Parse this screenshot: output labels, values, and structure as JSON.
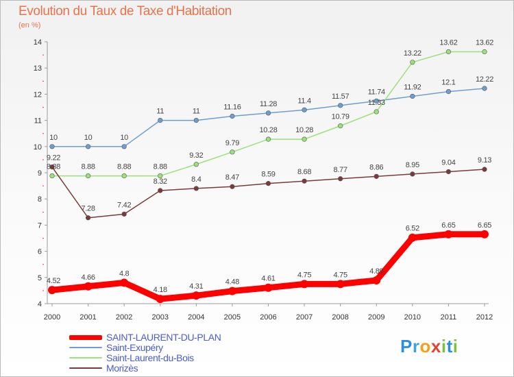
{
  "header": {
    "title": "Evolution du Taux de Taxe d'Habitation",
    "subtitle": "(en %)"
  },
  "brand": {
    "letters": [
      {
        "ch": "P",
        "color": "#2e8fd9"
      },
      {
        "ch": "r",
        "color": "#3aa6df"
      },
      {
        "ch": "o",
        "color": "#f5a01a"
      },
      {
        "ch": "x",
        "color": "#e2452f"
      },
      {
        "ch": "i",
        "color": "#7cc242"
      },
      {
        "ch": "t",
        "color": "#2e8fd9"
      },
      {
        "ch": "i",
        "color": "#7cc242"
      }
    ]
  },
  "chart_data": {
    "type": "line",
    "x": [
      "2000",
      "2001",
      "2002",
      "2003",
      "2004",
      "2005",
      "2006",
      "2007",
      "2008",
      "2009",
      "2010",
      "2011",
      "2012"
    ],
    "ylim": [
      4,
      14
    ],
    "yticks": [
      "4",
      "5",
      "6",
      "7",
      "8",
      "9",
      "10",
      "11",
      "12",
      "13",
      "14"
    ],
    "grid": false,
    "legend_position": "bottom-left",
    "series": [
      {
        "name": "SAINT-LAURENT-DU-PLAN",
        "color": "#ff0000",
        "values": [
          4.52,
          4.66,
          4.8,
          4.18,
          4.31,
          4.48,
          4.61,
          4.75,
          4.75,
          4.89,
          6.52,
          6.65,
          6.65
        ],
        "labels": [
          "4.52",
          "4.66",
          "4.8",
          "4.18",
          "4.31",
          "4.48",
          "4.61",
          "4.75",
          "4.75",
          "4.89",
          "6.52",
          "6.65",
          "6.65"
        ]
      },
      {
        "name": "Saint-Exupéry",
        "color": "#6c9fd0",
        "values": [
          10,
          10,
          10,
          11,
          11,
          11.16,
          11.28,
          11.4,
          11.57,
          11.74,
          11.92,
          12.1,
          12.22
        ],
        "labels": [
          "10",
          "10",
          "10",
          "11",
          "11",
          "11.16",
          "11.28",
          "11.4",
          "11.57",
          "11.74",
          "11.92",
          "12.1",
          "12.22"
        ]
      },
      {
        "name": "Saint-Laurent-du-Bois",
        "color": "#99e27a",
        "values": [
          8.88,
          8.88,
          8.88,
          8.88,
          9.32,
          9.79,
          10.28,
          10.28,
          10.79,
          11.33,
          13.22,
          13.62,
          13.62
        ],
        "labels": [
          "8.88",
          "8.88",
          "8.88",
          "8.88",
          "9.32",
          "9.79",
          "10.28",
          "10.28",
          "10.79",
          "11.33",
          "13.22",
          "13.62",
          "13.62"
        ]
      },
      {
        "name": "Morizès",
        "color": "#7a3a3a",
        "values": [
          9.22,
          7.28,
          7.42,
          8.32,
          8.4,
          8.47,
          8.59,
          8.68,
          8.77,
          8.86,
          8.95,
          9.04,
          9.13
        ],
        "labels": [
          "9.22",
          "7.28",
          "7.42",
          "8.32",
          "8.4",
          "8.47",
          "8.59",
          "8.68",
          "8.77",
          "8.86",
          "8.95",
          "9.04",
          "9.13"
        ]
      }
    ]
  }
}
